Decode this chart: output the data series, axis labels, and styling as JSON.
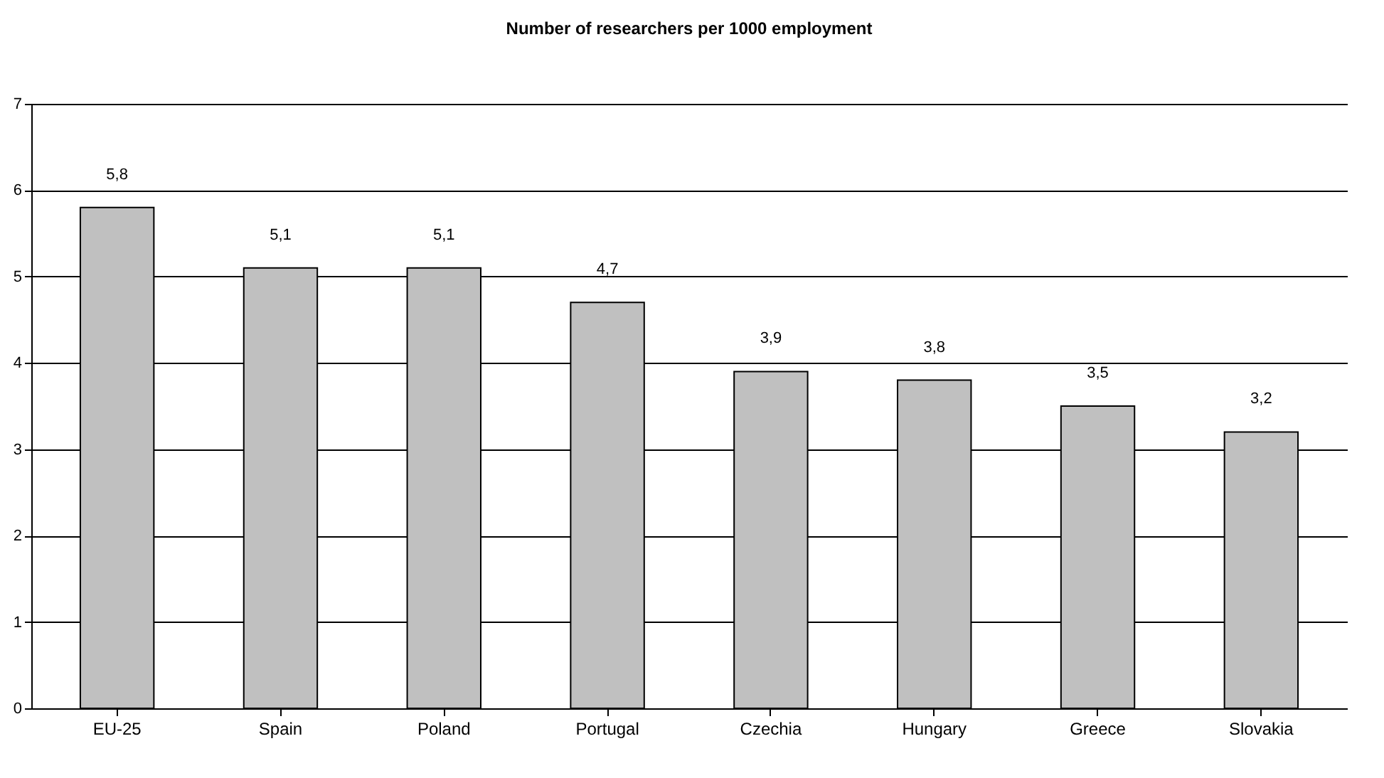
{
  "chart_data": {
    "type": "bar",
    "title": "Number of researchers per 1000 employment",
    "categories": [
      "EU-25",
      "Spain",
      "Poland",
      "Portugal",
      "Czechia",
      "Hungary",
      "Greece",
      "Slovakia"
    ],
    "values": [
      5.8,
      5.1,
      5.1,
      4.7,
      3.9,
      3.8,
      3.5,
      3.2
    ],
    "value_labels": [
      "5,8",
      "5,1",
      "5,1",
      "4,7",
      "3,9",
      "3,8",
      "3,5",
      "3,2"
    ],
    "color": "#c0c0c0",
    "ylim": [
      0,
      7
    ],
    "yticks": [
      0,
      1,
      2,
      3,
      4,
      5,
      6,
      7
    ],
    "grid": "y"
  }
}
